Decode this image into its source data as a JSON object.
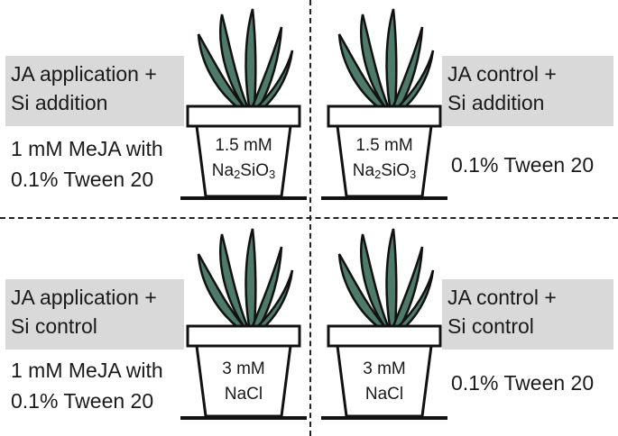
{
  "quadrants": [
    {
      "id": "top-left",
      "label_lines": [
        "JA application +",
        "Si addition"
      ],
      "treatment_lines": [
        "1 mM MeJA with",
        "0.1% Tween 20"
      ],
      "pot_line1": "1.5 mM",
      "pot_line2_main": "Na",
      "pot_line2_sub1": "2",
      "pot_line2_mid": "SiO",
      "pot_line2_sub2": "3"
    },
    {
      "id": "top-right",
      "label_lines": [
        "JA control +",
        "Si addition"
      ],
      "treatment_lines": [
        "0.1% Tween 20"
      ],
      "pot_line1": "1.5 mM",
      "pot_line2_main": "Na",
      "pot_line2_sub1": "2",
      "pot_line2_mid": "SiO",
      "pot_line2_sub2": "3"
    },
    {
      "id": "bottom-left",
      "label_lines": [
        "JA application +",
        "Si control"
      ],
      "treatment_lines": [
        "1 mM MeJA with",
        "0.1% Tween 20"
      ],
      "pot_line1": "3 mM",
      "pot_line2_main": "NaCl"
    },
    {
      "id": "bottom-right",
      "label_lines": [
        "JA control +",
        "Si control"
      ],
      "treatment_lines": [
        "0.1% Tween 20"
      ],
      "pot_line1": "3 mM",
      "pot_line2_main": "NaCl"
    }
  ],
  "colors": {
    "label_background": "#d9d9d9",
    "leaf_fill": "#4e7a6a",
    "outline": "#111111",
    "divider": "#222222"
  }
}
